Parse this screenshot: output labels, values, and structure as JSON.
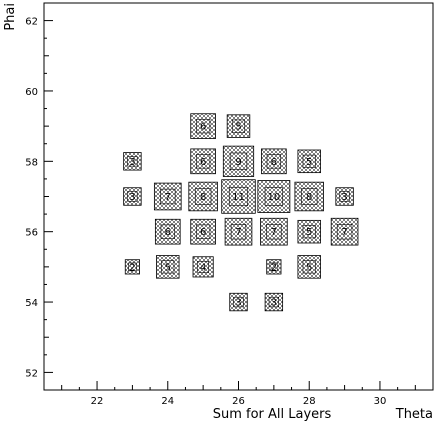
{
  "chart_data": {
    "type": "heatmap",
    "style": "box",
    "title": "",
    "xlabel": "Sum for All Layers",
    "xlabel_right": "Theta",
    "ylabel": "Phai",
    "xlim": [
      20.5,
      31.5
    ],
    "ylim": [
      51.5,
      62.5
    ],
    "x_ticks": [
      22,
      24,
      26,
      28,
      30
    ],
    "y_ticks": [
      52,
      54,
      56,
      58,
      60,
      62
    ],
    "grid": false,
    "cells": [
      {
        "x": 25,
        "y": 59,
        "value": 6
      },
      {
        "x": 26,
        "y": 59,
        "value": 5
      },
      {
        "x": 23,
        "y": 58,
        "value": 3
      },
      {
        "x": 25,
        "y": 58,
        "value": 6
      },
      {
        "x": 26,
        "y": 58,
        "value": 9
      },
      {
        "x": 27,
        "y": 58,
        "value": 6
      },
      {
        "x": 28,
        "y": 58,
        "value": 5
      },
      {
        "x": 23,
        "y": 57,
        "value": 3
      },
      {
        "x": 24,
        "y": 57,
        "value": 7
      },
      {
        "x": 25,
        "y": 57,
        "value": 8
      },
      {
        "x": 26,
        "y": 57,
        "value": 11
      },
      {
        "x": 27,
        "y": 57,
        "value": 10
      },
      {
        "x": 28,
        "y": 57,
        "value": 8
      },
      {
        "x": 29,
        "y": 57,
        "value": 3
      },
      {
        "x": 24,
        "y": 56,
        "value": 6
      },
      {
        "x": 25,
        "y": 56,
        "value": 6
      },
      {
        "x": 26,
        "y": 56,
        "value": 7
      },
      {
        "x": 27,
        "y": 56,
        "value": 7
      },
      {
        "x": 28,
        "y": 56,
        "value": 5
      },
      {
        "x": 29,
        "y": 56,
        "value": 7
      },
      {
        "x": 23,
        "y": 55,
        "value": 2
      },
      {
        "x": 24,
        "y": 55,
        "value": 5
      },
      {
        "x": 25,
        "y": 55,
        "value": 4
      },
      {
        "x": 27,
        "y": 55,
        "value": 2
      },
      {
        "x": 28,
        "y": 55,
        "value": 5
      },
      {
        "x": 26,
        "y": 54,
        "value": 3
      },
      {
        "x": 27,
        "y": 54,
        "value": 3
      }
    ]
  }
}
